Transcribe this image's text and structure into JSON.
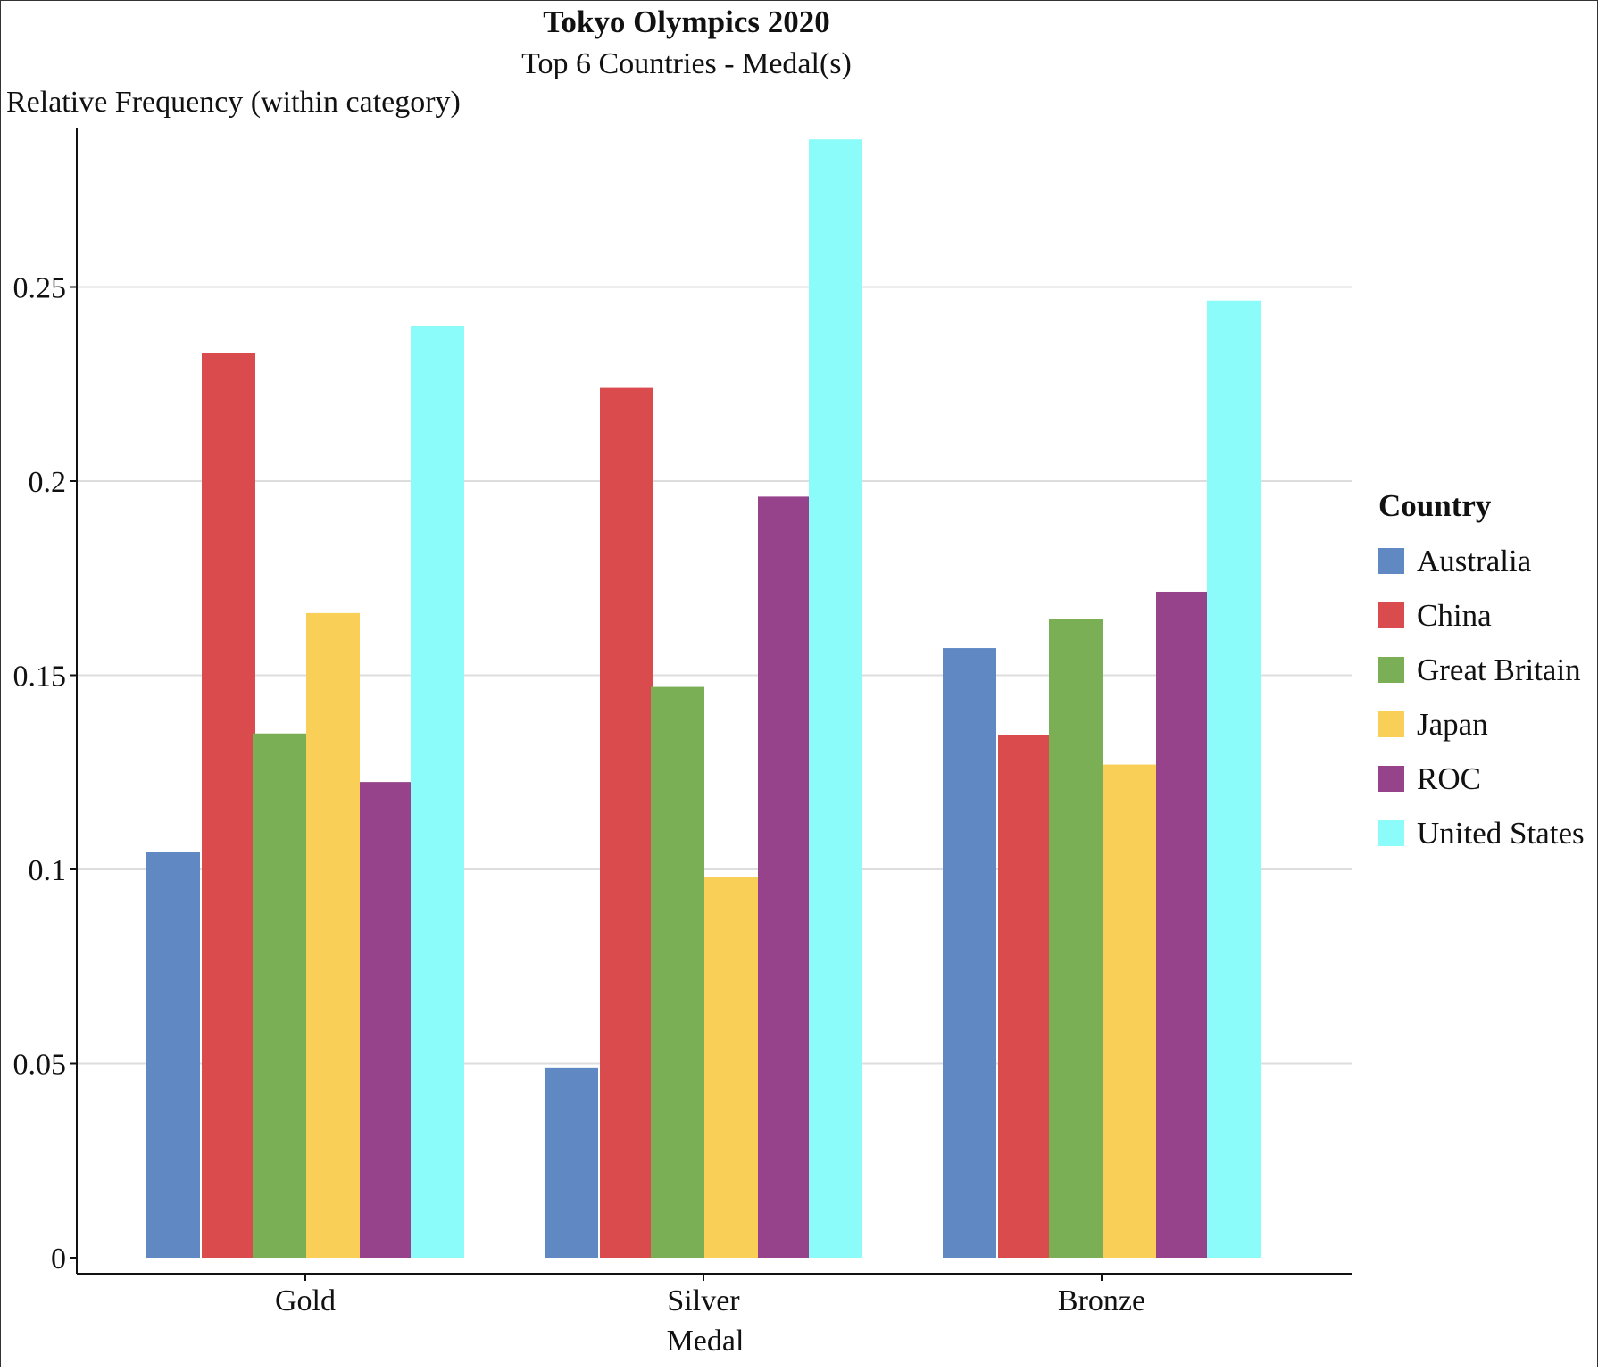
{
  "chart_data": {
    "type": "bar",
    "title": "Tokyo Olympics 2020",
    "subtitle": "Top 6 Countries - Medal(s)",
    "ylabel": "Relative Frequency (within category)",
    "xlabel": "Medal",
    "categories": [
      "Gold",
      "Silver",
      "Bronze"
    ],
    "ylim": [
      0,
      0.29
    ],
    "yticks": [
      0,
      0.05,
      0.1,
      0.15,
      0.2,
      0.25
    ],
    "ytick_labels": [
      "0",
      "0.05",
      "0.1",
      "0.15",
      "0.2",
      "0.25"
    ],
    "grid": true,
    "legend": {
      "title": "Country",
      "position": "right"
    },
    "series": [
      {
        "name": "Australia",
        "color": "#6088c2",
        "values": [
          0.1045,
          0.049,
          0.157
        ]
      },
      {
        "name": "China",
        "color": "#d94b4d",
        "values": [
          0.233,
          0.224,
          0.1345
        ]
      },
      {
        "name": "Great Britain",
        "color": "#7aaf55",
        "values": [
          0.135,
          0.147,
          0.1645
        ]
      },
      {
        "name": "Japan",
        "color": "#f9cf57",
        "values": [
          0.166,
          0.098,
          0.127
        ]
      },
      {
        "name": "ROC",
        "color": "#96438b",
        "values": [
          0.1225,
          0.196,
          0.1715
        ]
      },
      {
        "name": "United States",
        "color": "#8bfcfa",
        "values": [
          0.24,
          0.288,
          0.2465
        ]
      }
    ]
  }
}
